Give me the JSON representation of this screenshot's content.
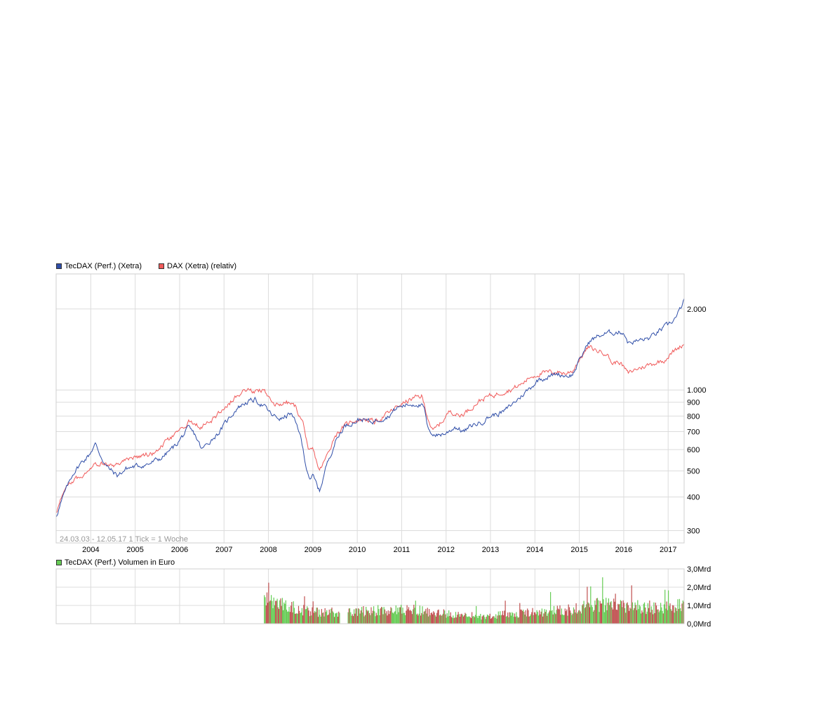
{
  "legend_main": [
    {
      "label": "TecDAX (Perf.) (Xetra)",
      "color": "#2f4ea8"
    },
    {
      "label": "DAX (Xetra) (relativ)",
      "color": "#f05a5a"
    }
  ],
  "legend_volume": {
    "label": "TecDAX (Perf.) Volumen in Euro",
    "color": "#66cc55"
  },
  "range_note": "24.03.03 - 12.05.17   1 Tick = 1 Woche",
  "colors": {
    "grid": "#dcdcdc",
    "frame": "#cfcfcf",
    "vol_green": "#66cc55",
    "vol_red": "#c05050"
  },
  "chart_data": [
    {
      "type": "line",
      "scale": "log",
      "ylim": [
        270,
        2700
      ],
      "xlim": [
        2003.22,
        2017.36
      ],
      "x_ticks": [
        "2004",
        "2005",
        "2006",
        "2007",
        "2008",
        "2009",
        "2010",
        "2011",
        "2012",
        "2013",
        "2014",
        "2015",
        "2016",
        "2017"
      ],
      "y_ticks": [
        {
          "value": 2000,
          "label": "2.000"
        },
        {
          "value": 1000,
          "label": "1.000"
        },
        {
          "value": 900,
          "label": "900"
        },
        {
          "value": 800,
          "label": "800"
        },
        {
          "value": 700,
          "label": "700"
        },
        {
          "value": 600,
          "label": "600"
        },
        {
          "value": 500,
          "label": "500"
        },
        {
          "value": 400,
          "label": "400"
        },
        {
          "value": 300,
          "label": "300"
        }
      ],
      "series": [
        {
          "name": "TecDAX (Perf.) (Xetra)",
          "color": "#2f4ea8",
          "points": [
            [
              2003.22,
              340
            ],
            [
              2003.4,
              410
            ],
            [
              2003.6,
              490
            ],
            [
              2003.8,
              540
            ],
            [
              2003.95,
              570
            ],
            [
              2004.1,
              630
            ],
            [
              2004.2,
              580
            ],
            [
              2004.35,
              520
            ],
            [
              2004.6,
              480
            ],
            [
              2004.8,
              510
            ],
            [
              2005.0,
              520
            ],
            [
              2005.3,
              530
            ],
            [
              2005.6,
              560
            ],
            [
              2005.9,
              620
            ],
            [
              2006.2,
              720
            ],
            [
              2006.35,
              680
            ],
            [
              2006.5,
              600
            ],
            [
              2006.7,
              650
            ],
            [
              2006.9,
              700
            ],
            [
              2007.1,
              780
            ],
            [
              2007.3,
              860
            ],
            [
              2007.5,
              900
            ],
            [
              2007.7,
              920
            ],
            [
              2007.9,
              870
            ],
            [
              2008.1,
              800
            ],
            [
              2008.3,
              780
            ],
            [
              2008.5,
              820
            ],
            [
              2008.7,
              700
            ],
            [
              2008.85,
              520
            ],
            [
              2008.95,
              460
            ],
            [
              2009.0,
              480
            ],
            [
              2009.15,
              420
            ],
            [
              2009.3,
              520
            ],
            [
              2009.5,
              640
            ],
            [
              2009.7,
              730
            ],
            [
              2009.9,
              760
            ],
            [
              2010.1,
              780
            ],
            [
              2010.3,
              760
            ],
            [
              2010.5,
              780
            ],
            [
              2010.7,
              800
            ],
            [
              2010.9,
              860
            ],
            [
              2011.1,
              880
            ],
            [
              2011.35,
              890
            ],
            [
              2011.5,
              860
            ],
            [
              2011.6,
              700
            ],
            [
              2011.8,
              680
            ],
            [
              2012.0,
              690
            ],
            [
              2012.2,
              730
            ],
            [
              2012.4,
              700
            ],
            [
              2012.6,
              740
            ],
            [
              2012.8,
              760
            ],
            [
              2013.0,
              800
            ],
            [
              2013.3,
              830
            ],
            [
              2013.6,
              920
            ],
            [
              2013.9,
              1020
            ],
            [
              2014.1,
              1100
            ],
            [
              2014.3,
              1120
            ],
            [
              2014.5,
              1150
            ],
            [
              2014.7,
              1130
            ],
            [
              2014.85,
              1140
            ],
            [
              2015.0,
              1280
            ],
            [
              2015.2,
              1500
            ],
            [
              2015.4,
              1580
            ],
            [
              2015.6,
              1620
            ],
            [
              2015.8,
              1640
            ],
            [
              2016.0,
              1640
            ],
            [
              2016.1,
              1500
            ],
            [
              2016.3,
              1520
            ],
            [
              2016.6,
              1560
            ],
            [
              2016.8,
              1660
            ],
            [
              2017.0,
              1740
            ],
            [
              2017.2,
              1880
            ],
            [
              2017.36,
              2150
            ]
          ]
        },
        {
          "name": "DAX (Xetra) (relativ)",
          "color": "#f05a5a",
          "points": [
            [
              2003.22,
              350
            ],
            [
              2003.4,
              420
            ],
            [
              2003.6,
              460
            ],
            [
              2003.8,
              480
            ],
            [
              2003.95,
              510
            ],
            [
              2004.1,
              540
            ],
            [
              2004.3,
              530
            ],
            [
              2004.5,
              520
            ],
            [
              2004.7,
              540
            ],
            [
              2004.9,
              560
            ],
            [
              2005.1,
              570
            ],
            [
              2005.4,
              580
            ],
            [
              2005.7,
              640
            ],
            [
              2006.0,
              700
            ],
            [
              2006.25,
              770
            ],
            [
              2006.45,
              730
            ],
            [
              2006.6,
              740
            ],
            [
              2006.8,
              790
            ],
            [
              2007.0,
              860
            ],
            [
              2007.2,
              920
            ],
            [
              2007.4,
              990
            ],
            [
              2007.55,
              1010
            ],
            [
              2007.7,
              980
            ],
            [
              2007.9,
              1010
            ],
            [
              2008.05,
              900
            ],
            [
              2008.2,
              880
            ],
            [
              2008.4,
              900
            ],
            [
              2008.6,
              870
            ],
            [
              2008.8,
              740
            ],
            [
              2008.9,
              580
            ],
            [
              2009.0,
              600
            ],
            [
              2009.15,
              500
            ],
            [
              2009.3,
              560
            ],
            [
              2009.5,
              680
            ],
            [
              2009.7,
              730
            ],
            [
              2009.9,
              770
            ],
            [
              2010.2,
              780
            ],
            [
              2010.4,
              760
            ],
            [
              2010.6,
              800
            ],
            [
              2010.8,
              840
            ],
            [
              2010.95,
              880
            ],
            [
              2011.2,
              920
            ],
            [
              2011.45,
              950
            ],
            [
              2011.55,
              830
            ],
            [
              2011.7,
              700
            ],
            [
              2011.9,
              760
            ],
            [
              2012.1,
              840
            ],
            [
              2012.3,
              800
            ],
            [
              2012.5,
              840
            ],
            [
              2012.7,
              900
            ],
            [
              2012.9,
              940
            ],
            [
              2013.1,
              960
            ],
            [
              2013.3,
              990
            ],
            [
              2013.5,
              1010
            ],
            [
              2013.7,
              1050
            ],
            [
              2013.9,
              1120
            ],
            [
              2014.1,
              1150
            ],
            [
              2014.3,
              1160
            ],
            [
              2014.5,
              1170
            ],
            [
              2014.7,
              1150
            ],
            [
              2014.85,
              1180
            ],
            [
              2015.0,
              1300
            ],
            [
              2015.2,
              1440
            ],
            [
              2015.4,
              1400
            ],
            [
              2015.6,
              1380
            ],
            [
              2015.75,
              1250
            ],
            [
              2015.9,
              1280
            ],
            [
              2016.1,
              1150
            ],
            [
              2016.3,
              1200
            ],
            [
              2016.5,
              1230
            ],
            [
              2016.7,
              1260
            ],
            [
              2016.9,
              1290
            ],
            [
              2017.1,
              1380
            ],
            [
              2017.36,
              1490
            ]
          ]
        }
      ]
    },
    {
      "type": "bar",
      "title": "TecDAX (Perf.) Volumen in Euro",
      "ylim": [
        0,
        3
      ],
      "unit": "Mrd",
      "y_ticks": [
        {
          "value": 3,
          "label": "3,0Mrd"
        },
        {
          "value": 2,
          "label": "2,0Mrd"
        },
        {
          "value": 1,
          "label": "1,0Mrd"
        },
        {
          "value": 0,
          "label": "0,0Mrd"
        }
      ],
      "series": [
        {
          "name": "TecDAX (Perf.) Volumen in Euro",
          "start_x": 2007.9,
          "end_x": 2017.36,
          "gap": [
            2009.6,
            2009.78
          ],
          "level_points": [
            [
              2007.9,
              1.3
            ],
            [
              2008.1,
              1.2
            ],
            [
              2008.4,
              1.0
            ],
            [
              2008.8,
              0.8
            ],
            [
              2009.2,
              0.65
            ],
            [
              2009.55,
              0.6
            ],
            [
              2009.8,
              0.7
            ],
            [
              2010.3,
              0.72
            ],
            [
              2010.8,
              0.8
            ],
            [
              2011.3,
              0.78
            ],
            [
              2011.8,
              0.65
            ],
            [
              2012.3,
              0.5
            ],
            [
              2012.8,
              0.4
            ],
            [
              2013.3,
              0.55
            ],
            [
              2013.8,
              0.62
            ],
            [
              2014.3,
              0.72
            ],
            [
              2014.8,
              0.8
            ],
            [
              2015.3,
              1.05
            ],
            [
              2015.8,
              1.1
            ],
            [
              2016.3,
              1.0
            ],
            [
              2016.8,
              0.9
            ],
            [
              2017.1,
              1.05
            ],
            [
              2017.36,
              1.15
            ]
          ]
        }
      ]
    }
  ]
}
